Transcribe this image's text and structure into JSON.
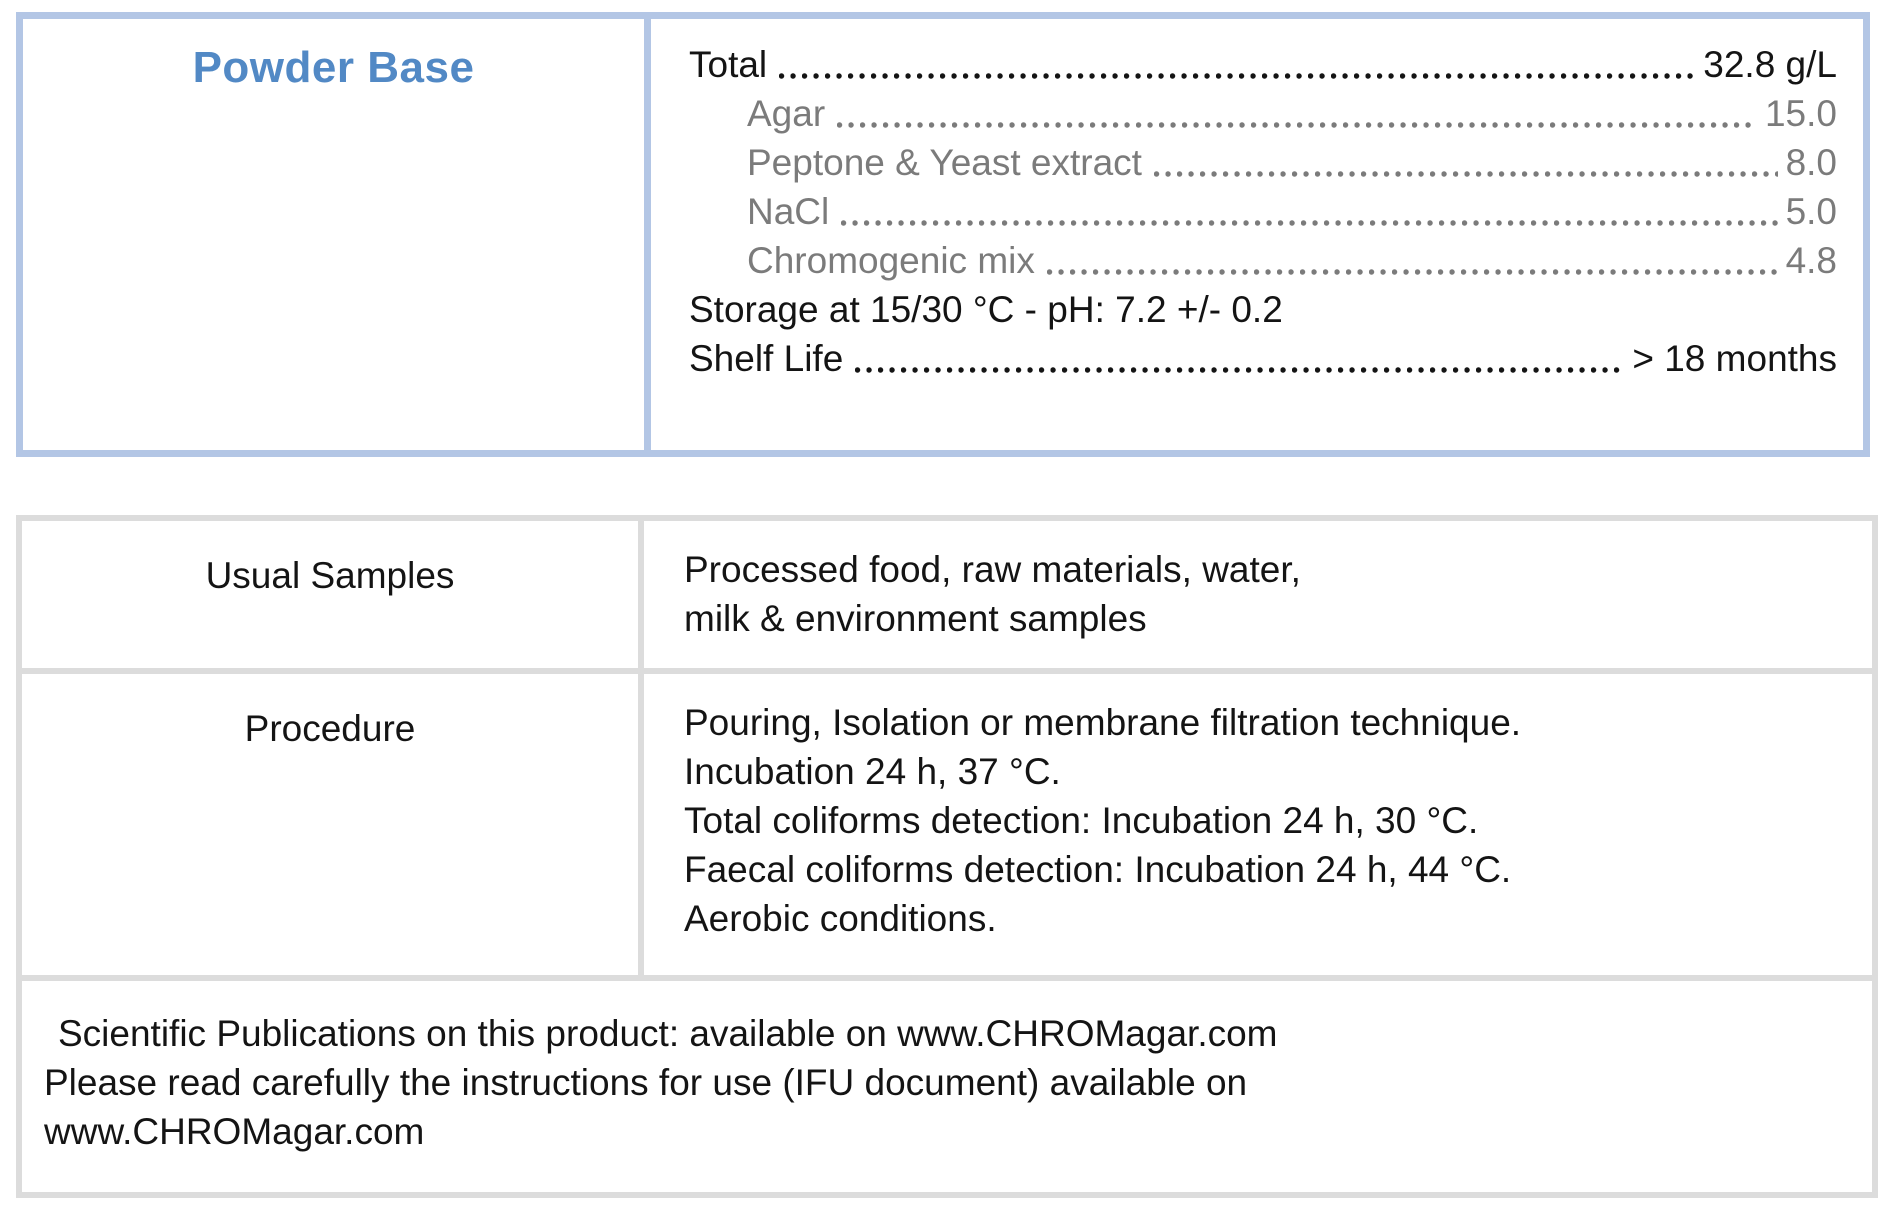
{
  "colors": {
    "powder_box_border": "#b3c6e5",
    "title_blue": "#5289c5",
    "ingredient_gray": "#7b7b7b",
    "info_table_border": "#dcdcdc",
    "text_black": "#141414"
  },
  "powder_base": {
    "title": "Powder Base",
    "total": {
      "label": "Total",
      "value": "32.8 g/L"
    },
    "ingredients": [
      {
        "label": "Agar",
        "value": "15.0"
      },
      {
        "label": "Peptone & Yeast extract",
        "value": "8.0"
      },
      {
        "label": "NaCl",
        "value": "5.0"
      },
      {
        "label": "Chromogenic mix",
        "value": "4.8"
      }
    ],
    "storage_line": "Storage at 15/30 °C - pH: 7.2 +/- 0.2",
    "shelf_life": {
      "label": "Shelf Life",
      "value": "> 18 months"
    }
  },
  "info_table": {
    "rows": [
      {
        "label": "Usual Samples",
        "lines": [
          "Processed food, raw materials, water,",
          "milk & environment samples"
        ]
      },
      {
        "label": "Procedure",
        "lines": [
          "Pouring, Isolation or membrane filtration technique.",
          "Incubation 24 h, 37 °C.",
          "Total coliforms detection: Incubation 24 h, 30 °C.",
          "Faecal coliforms detection: Incubation 24 h, 44 °C.",
          "Aerobic conditions."
        ]
      }
    ],
    "footer_lines": [
      "Scientific Publications on this product: available on www.CHROMagar.com",
      "Please read carefully the instructions for use (IFU document) available on",
      "www.CHROMagar.com"
    ]
  }
}
